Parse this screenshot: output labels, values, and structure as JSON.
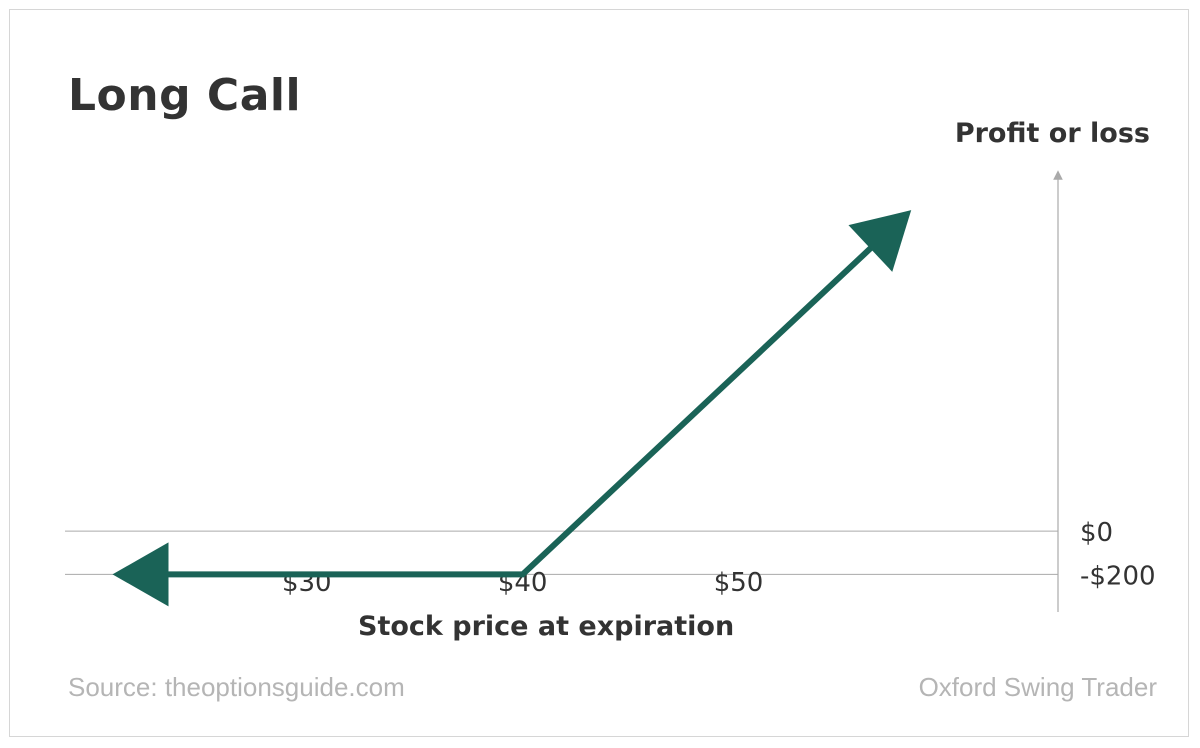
{
  "chart_data": {
    "type": "line",
    "title": "Long Call",
    "xlabel": "Stock price at expiration",
    "ylabel": "Profit or loss",
    "x_ticks": [
      {
        "value": 30,
        "label": "$30"
      },
      {
        "value": 40,
        "label": "$40"
      },
      {
        "value": 50,
        "label": "$50"
      }
    ],
    "y_ticks": [
      {
        "value": 0,
        "label": "$0"
      },
      {
        "value": -200,
        "label": "-$200"
      }
    ],
    "series": [
      {
        "x": [
          21,
          40,
          58
        ],
        "y": [
          -200,
          -200,
          1485
        ]
      }
    ],
    "xlim": [
      18.8,
      64.8
    ],
    "ylim": [
      -374,
      1694
    ],
    "grid": false,
    "colors": {
      "line": "#1a6357",
      "axis": "#aaaaaa",
      "text": "#333333"
    }
  },
  "footer": {
    "source": "Source: theoptionsguide.com",
    "brand": "Oxford Swing Trader"
  }
}
